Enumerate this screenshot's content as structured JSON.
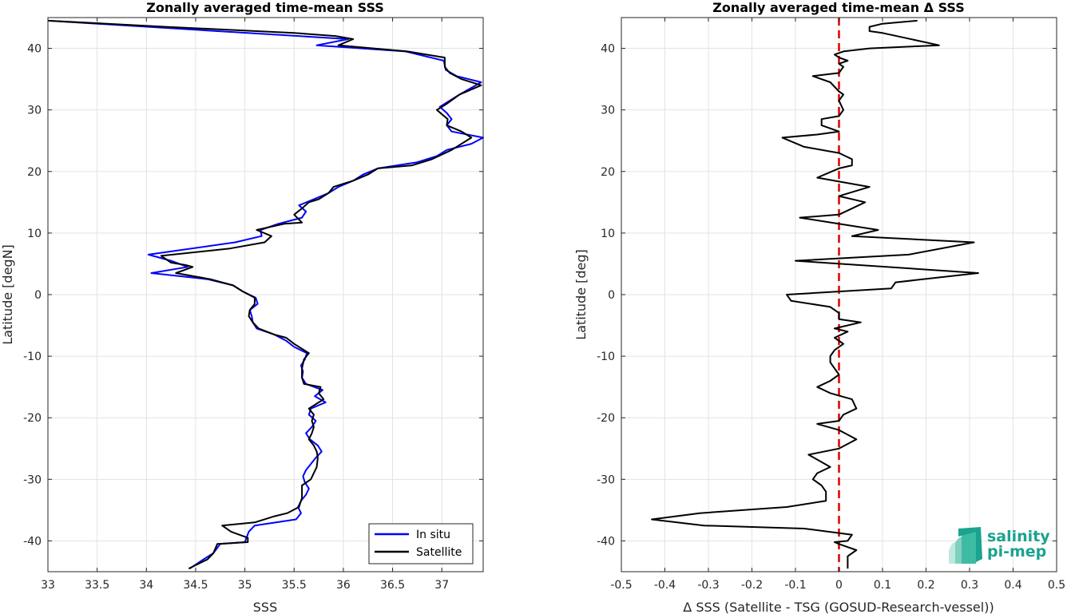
{
  "chart_data": [
    {
      "type": "line",
      "title": "Zonally averaged time-mean SSS",
      "xlabel": "SSS",
      "ylabel": "Latitude [degN]",
      "xlim": [
        33,
        37.42
      ],
      "ylim": [
        -45,
        45
      ],
      "xticks": [
        33,
        33.5,
        34,
        34.5,
        35,
        35.5,
        36,
        36.5,
        37
      ],
      "yticks": [
        -40,
        -30,
        -20,
        -10,
        0,
        10,
        20,
        30,
        40
      ],
      "grid": true,
      "legend_position": "bottom-right",
      "series": [
        {
          "name": "In situ",
          "color": "#0000ff",
          "points": [
            [
              34.44,
              -44.5
            ],
            [
              34.58,
              -43
            ],
            [
              34.68,
              -42
            ],
            [
              34.75,
              -40.5
            ],
            [
              35.0,
              -40.2
            ],
            [
              35.04,
              -38.5
            ],
            [
              35.1,
              -37.5
            ],
            [
              35.52,
              -36.5
            ],
            [
              35.57,
              -35.5
            ],
            [
              35.54,
              -34.5
            ],
            [
              35.57,
              -33.5
            ],
            [
              35.62,
              -32.5
            ],
            [
              35.65,
              -31.5
            ],
            [
              35.61,
              -30.5
            ],
            [
              35.59,
              -29.5
            ],
            [
              35.62,
              -28.5
            ],
            [
              35.67,
              -27.5
            ],
            [
              35.72,
              -26.5
            ],
            [
              35.78,
              -25.5
            ],
            [
              35.74,
              -24.5
            ],
            [
              35.66,
              -23.5
            ],
            [
              35.62,
              -22.5
            ],
            [
              35.68,
              -21.5
            ],
            [
              35.72,
              -20.5
            ],
            [
              35.65,
              -19.5
            ],
            [
              35.67,
              -18.5
            ],
            [
              35.82,
              -17.5
            ],
            [
              35.71,
              -16.5
            ],
            [
              35.79,
              -15.5
            ],
            [
              35.62,
              -14.5
            ],
            [
              35.58,
              -13.5
            ],
            [
              35.59,
              -12.5
            ],
            [
              35.57,
              -11.5
            ],
            [
              35.61,
              -10.5
            ],
            [
              35.63,
              -9.5
            ],
            [
              35.5,
              -8.5
            ],
            [
              35.42,
              -7.5
            ],
            [
              35.3,
              -6.5
            ],
            [
              35.12,
              -5.5
            ],
            [
              35.08,
              -4.5
            ],
            [
              35.07,
              -3.5
            ],
            [
              35.05,
              -2.5
            ],
            [
              35.13,
              -1.5
            ],
            [
              35.11,
              -0.5
            ],
            [
              34.98,
              0.5
            ],
            [
              34.88,
              1.5
            ],
            [
              34.62,
              2.5
            ],
            [
              34.05,
              3.5
            ],
            [
              34.42,
              4.5
            ],
            [
              34.25,
              5.5
            ],
            [
              34.02,
              6.5
            ],
            [
              34.9,
              8.5
            ],
            [
              35.17,
              9.5
            ],
            [
              35.16,
              10.5
            ],
            [
              35.34,
              11.5
            ],
            [
              35.58,
              12.5
            ],
            [
              35.62,
              13.5
            ],
            [
              35.55,
              14.5
            ],
            [
              35.7,
              15.5
            ],
            [
              35.85,
              16.5
            ],
            [
              35.95,
              17.5
            ],
            [
              36.1,
              18.5
            ],
            [
              36.2,
              19.5
            ],
            [
              36.35,
              20.5
            ],
            [
              36.75,
              21.5
            ],
            [
              36.95,
              22.5
            ],
            [
              37.05,
              23.5
            ],
            [
              37.3,
              24.5
            ],
            [
              37.42,
              25.5
            ],
            [
              37.1,
              26.5
            ],
            [
              37.05,
              27.5
            ],
            [
              37.1,
              28.5
            ],
            [
              37.05,
              29.5
            ],
            [
              36.98,
              30.5
            ],
            [
              37.18,
              32.5
            ],
            [
              37.4,
              34.5
            ],
            [
              37.15,
              35.5
            ],
            [
              37.04,
              36.5
            ],
            [
              37.02,
              38
            ],
            [
              36.63,
              39.5
            ],
            [
              35.73,
              40.5
            ],
            [
              36.05,
              41.5
            ],
            [
              33.0,
              44.5
            ]
          ]
        },
        {
          "name": "Satellite",
          "color": "#000000",
          "points": [
            [
              34.43,
              -44.5
            ],
            [
              34.62,
              -43
            ],
            [
              34.68,
              -42
            ],
            [
              34.72,
              -40.5
            ],
            [
              35.03,
              -40.2
            ],
            [
              35.03,
              -39.5
            ],
            [
              34.86,
              -38.5
            ],
            [
              34.77,
              -37.5
            ],
            [
              35.1,
              -37
            ],
            [
              35.3,
              -36
            ],
            [
              35.43,
              -35.5
            ],
            [
              35.55,
              -34.5
            ],
            [
              35.58,
              -33
            ],
            [
              35.58,
              -31
            ],
            [
              35.67,
              -30
            ],
            [
              35.7,
              -29
            ],
            [
              35.73,
              -28
            ],
            [
              35.74,
              -26.5
            ],
            [
              35.73,
              -25.5
            ],
            [
              35.7,
              -24.5
            ],
            [
              35.65,
              -23.5
            ],
            [
              35.68,
              -22.5
            ],
            [
              35.7,
              -21.5
            ],
            [
              35.68,
              -20.5
            ],
            [
              35.7,
              -19.5
            ],
            [
              35.65,
              -18.5
            ],
            [
              35.8,
              -17
            ],
            [
              35.75,
              -16
            ],
            [
              35.77,
              -15
            ],
            [
              35.6,
              -14.5
            ],
            [
              35.58,
              -13.5
            ],
            [
              35.58,
              -12
            ],
            [
              35.6,
              -10.5
            ],
            [
              35.65,
              -9.5
            ],
            [
              35.5,
              -8
            ],
            [
              35.42,
              -7
            ],
            [
              35.3,
              -6.5
            ],
            [
              35.14,
              -5.5
            ],
            [
              35.08,
              -4.5
            ],
            [
              35.04,
              -3.5
            ],
            [
              35.05,
              -2.5
            ],
            [
              35.1,
              -1.5
            ],
            [
              35.1,
              -0.5
            ],
            [
              34.98,
              0.5
            ],
            [
              34.88,
              1.5
            ],
            [
              34.65,
              2.5
            ],
            [
              34.3,
              3.5
            ],
            [
              34.47,
              4.5
            ],
            [
              34.4,
              4.8
            ],
            [
              34.25,
              5.2
            ],
            [
              34.15,
              6.3
            ],
            [
              34.85,
              7.5
            ],
            [
              35.2,
              8.5
            ],
            [
              35.27,
              9.5
            ],
            [
              35.12,
              10.5
            ],
            [
              35.4,
              11.5
            ],
            [
              35.58,
              11.7
            ],
            [
              35.5,
              13
            ],
            [
              35.58,
              14
            ],
            [
              35.65,
              15
            ],
            [
              35.75,
              15.5
            ],
            [
              35.85,
              16.5
            ],
            [
              35.9,
              17.5
            ],
            [
              36.1,
              18.5
            ],
            [
              36.25,
              19.5
            ],
            [
              36.35,
              20.5
            ],
            [
              36.7,
              21
            ],
            [
              36.9,
              22
            ],
            [
              37.1,
              23.5
            ],
            [
              37.3,
              25.5
            ],
            [
              37.2,
              26.5
            ],
            [
              37.05,
              27.5
            ],
            [
              37.06,
              28.5
            ],
            [
              36.95,
              30
            ],
            [
              37.05,
              31
            ],
            [
              37.18,
              32.5
            ],
            [
              37.4,
              34
            ],
            [
              37.2,
              35
            ],
            [
              37.08,
              36
            ],
            [
              37.03,
              37
            ],
            [
              37.03,
              38.5
            ],
            [
              36.65,
              39.5
            ],
            [
              35.95,
              40.5
            ],
            [
              36.1,
              41.5
            ],
            [
              35.92,
              42
            ],
            [
              35.5,
              42.5
            ],
            [
              34.2,
              43.5
            ],
            [
              33.0,
              44.5
            ]
          ]
        }
      ]
    },
    {
      "type": "line",
      "title": "Zonally averaged time-mean Δ SSS",
      "xlabel": "Δ SSS (Satellite - TSG (GOSUD-Research-vessel))",
      "ylabel": "Latitude [deg]",
      "xlim": [
        -0.5,
        0.5
      ],
      "ylim": [
        -45,
        45
      ],
      "xticks": [
        -0.5,
        -0.4,
        -0.3,
        -0.2,
        -0.1,
        0,
        0.1,
        0.2,
        0.3,
        0.4,
        0.5
      ],
      "yticks": [
        -40,
        -30,
        -20,
        -10,
        0,
        10,
        20,
        30,
        40
      ],
      "grid": true,
      "reference_line": {
        "x": 0,
        "color": "#dd0000",
        "style": "dashed"
      },
      "series": [
        {
          "color": "#000000",
          "points": [
            [
              0.02,
              -44.5
            ],
            [
              0.02,
              -43.5
            ],
            [
              0.02,
              -42.5
            ],
            [
              0.04,
              -41.5
            ],
            [
              0.02,
              -41
            ],
            [
              0.0,
              -40.5
            ],
            [
              -0.01,
              -40.2
            ],
            [
              0.02,
              -40
            ],
            [
              0.03,
              -39
            ],
            [
              -0.08,
              -38
            ],
            [
              -0.31,
              -37.5
            ],
            [
              -0.43,
              -36.5
            ],
            [
              -0.32,
              -35.5
            ],
            [
              -0.12,
              -34.5
            ],
            [
              -0.03,
              -33.5
            ],
            [
              -0.03,
              -32
            ],
            [
              -0.04,
              -31
            ],
            [
              -0.06,
              -30
            ],
            [
              -0.05,
              -29
            ],
            [
              -0.02,
              -28
            ],
            [
              -0.07,
              -26
            ],
            [
              0.0,
              -25
            ],
            [
              0.04,
              -23.5
            ],
            [
              0.0,
              -22
            ],
            [
              -0.05,
              -21
            ],
            [
              0.0,
              -20.5
            ],
            [
              0.01,
              -19.5
            ],
            [
              0.04,
              -18.5
            ],
            [
              0.03,
              -17
            ],
            [
              -0.02,
              -16
            ],
            [
              -0.05,
              -15
            ],
            [
              -0.02,
              -14
            ],
            [
              0.0,
              -13
            ],
            [
              -0.01,
              -12
            ],
            [
              -0.02,
              -11
            ],
            [
              -0.02,
              -10
            ],
            [
              -0.01,
              -9
            ],
            [
              0.01,
              -8
            ],
            [
              -0.01,
              -7
            ],
            [
              0.02,
              -6
            ],
            [
              -0.01,
              -5.5
            ],
            [
              0.05,
              -4.5
            ],
            [
              0.0,
              -4
            ],
            [
              0.0,
              -3
            ],
            [
              -0.02,
              -2
            ],
            [
              -0.11,
              -1
            ],
            [
              -0.12,
              0
            ],
            [
              0.12,
              1
            ],
            [
              0.13,
              2
            ],
            [
              0.32,
              3.5
            ],
            [
              -0.1,
              5.5
            ],
            [
              0.16,
              6.5
            ],
            [
              0.31,
              8.5
            ],
            [
              0.03,
              9.5
            ],
            [
              0.09,
              10.5
            ],
            [
              -0.09,
              12.5
            ],
            [
              0.0,
              13
            ],
            [
              0.06,
              15
            ],
            [
              0.0,
              16
            ],
            [
              0.07,
              17.5
            ],
            [
              -0.05,
              19
            ],
            [
              0.0,
              20.5
            ],
            [
              0.03,
              21
            ],
            [
              0.03,
              22
            ],
            [
              0.0,
              23
            ],
            [
              -0.08,
              24
            ],
            [
              -0.13,
              25.5
            ],
            [
              -0.05,
              26
            ],
            [
              0.0,
              26.5
            ],
            [
              -0.04,
              27.5
            ],
            [
              -0.04,
              28.5
            ],
            [
              0.0,
              29
            ],
            [
              0.01,
              30
            ],
            [
              0.0,
              31.5
            ],
            [
              0.01,
              32.5
            ],
            [
              0.0,
              33
            ],
            [
              -0.02,
              34.5
            ],
            [
              -0.06,
              35.5
            ],
            [
              0.0,
              36
            ],
            [
              0.01,
              37
            ],
            [
              0.0,
              37.5
            ],
            [
              0.02,
              38
            ],
            [
              0.0,
              38.5
            ],
            [
              -0.01,
              39
            ],
            [
              0.01,
              39.5
            ],
            [
              0.07,
              40
            ],
            [
              0.23,
              40.5
            ],
            [
              0.1,
              42.5
            ],
            [
              0.07,
              42.8
            ],
            [
              0.07,
              43.5
            ],
            [
              0.1,
              44
            ],
            [
              0.18,
              44.5
            ]
          ]
        }
      ]
    }
  ],
  "legend": {
    "items": [
      {
        "label": "In situ",
        "color": "#0000ff"
      },
      {
        "label": "Satellite",
        "color": "#000000"
      }
    ]
  },
  "logo": {
    "line1": "salinity",
    "line2": "pi-mep",
    "color": "#1aa38f"
  }
}
